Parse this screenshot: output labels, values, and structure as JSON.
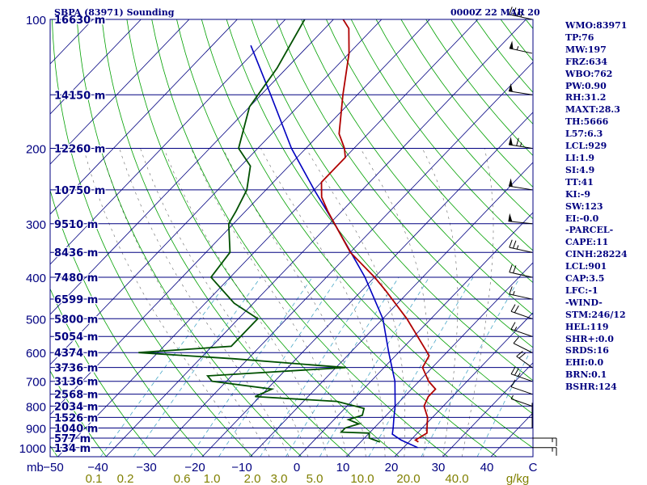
{
  "header": {
    "title": "SBPA (83971) Sounding",
    "time": "0000Z 22 MAR 20"
  },
  "indices": [
    "WMO:83971",
    "TP:76",
    "MW:197",
    "FRZ:634",
    "WBO:762",
    "PW:0.90",
    "RH:31.2",
    "MAXT:28.3",
    "TH:5666",
    "L57:6.3",
    "LCL:929",
    "LI:1.9",
    "SI:4.9",
    "TT:41",
    "KI:-9",
    "SW:123",
    "EI:-0.0",
    "-PARCEL-",
    "CAPE:11",
    "CINH:28224",
    "LCL:901",
    "CAP:3.5",
    "LFC:-1",
    "-WIND-",
    "STM:246/12",
    "HEL:119",
    "SHR+:0.0",
    "SRDS:16",
    "EHI:0.0",
    "BRN:0.1",
    "BSHR:124"
  ],
  "colors": {
    "frame": "#000080",
    "isobar": "#000080",
    "isotherm": "#000080",
    "dry_adiabat": "#00a000",
    "moist_adiabat": "#000000",
    "mixing_ratio": "#4aa8c8",
    "temperature": "#b00000",
    "dewpoint": "#005000",
    "parcel": "#0000c0",
    "mr_labels": "#808000",
    "wind": "#000000"
  },
  "chart_data": {
    "type": "skew-t",
    "x_unit": "°C",
    "x_ticks": [
      -50,
      -40,
      -30,
      -20,
      -10,
      0,
      10,
      20,
      30,
      40,
      "C"
    ],
    "y_unit": "mb",
    "y_ticks": [
      100,
      200,
      300,
      400,
      500,
      600,
      700,
      800,
      900,
      1000
    ],
    "height_labels": [
      {
        "p": 100,
        "label": "16630 m"
      },
      {
        "p": 150,
        "label": "14150 m"
      },
      {
        "p": 200,
        "label": "12260 m"
      },
      {
        "p": 250,
        "label": "10750 m"
      },
      {
        "p": 300,
        "label": "9510 m"
      },
      {
        "p": 350,
        "label": "8436 m"
      },
      {
        "p": 400,
        "label": "7480 m"
      },
      {
        "p": 450,
        "label": "6599 m"
      },
      {
        "p": 500,
        "label": "5800 m"
      },
      {
        "p": 550,
        "label": "5054 m"
      },
      {
        "p": 600,
        "label": "4374 m"
      },
      {
        "p": 650,
        "label": "3736 m"
      },
      {
        "p": 700,
        "label": "3136 m"
      },
      {
        "p": 750,
        "label": "2568 m"
      },
      {
        "p": 800,
        "label": "2034 m"
      },
      {
        "p": 850,
        "label": "1526 m"
      },
      {
        "p": 900,
        "label": "1040 m"
      },
      {
        "p": 950,
        "label": "577 m"
      },
      {
        "p": 1000,
        "label": "134 m"
      }
    ],
    "mixing_ratio_labels": [
      "0.1",
      "0.2",
      "0.6",
      "1.0",
      "2.0",
      "3.0",
      "5.0",
      "10.0",
      "20.0",
      "40.0",
      "g/kg"
    ],
    "mixing_ratio_values": [
      0.1,
      0.2,
      0.6,
      1.0,
      2.0,
      3.0,
      5.0,
      10.0,
      20.0,
      40.0
    ],
    "temperature": [
      {
        "p": 970,
        "t": 22
      },
      {
        "p": 960,
        "t": 21
      },
      {
        "p": 925,
        "t": 22
      },
      {
        "p": 900,
        "t": 21
      },
      {
        "p": 850,
        "t": 19
      },
      {
        "p": 800,
        "t": 16
      },
      {
        "p": 760,
        "t": 15
      },
      {
        "p": 730,
        "t": 15
      },
      {
        "p": 700,
        "t": 12
      },
      {
        "p": 650,
        "t": 8
      },
      {
        "p": 610,
        "t": 7
      },
      {
        "p": 590,
        "t": 5
      },
      {
        "p": 500,
        "t": -5
      },
      {
        "p": 430,
        "t": -15
      },
      {
        "p": 400,
        "t": -20
      },
      {
        "p": 350,
        "t": -30
      },
      {
        "p": 300,
        "t": -39
      },
      {
        "p": 280,
        "t": -43
      },
      {
        "p": 260,
        "t": -47
      },
      {
        "p": 240,
        "t": -50
      },
      {
        "p": 210,
        "t": -50
      },
      {
        "p": 200,
        "t": -52
      },
      {
        "p": 185,
        "t": -56
      },
      {
        "p": 150,
        "t": -63
      },
      {
        "p": 120,
        "t": -70
      },
      {
        "p": 105,
        "t": -75
      },
      {
        "p": 100,
        "t": -78
      }
    ],
    "dewpoint": [
      {
        "p": 970,
        "t": 14
      },
      {
        "p": 950,
        "t": 11
      },
      {
        "p": 925,
        "t": 10
      },
      {
        "p": 920,
        "t": 4
      },
      {
        "p": 900,
        "t": 4
      },
      {
        "p": 880,
        "t": 6
      },
      {
        "p": 860,
        "t": 3
      },
      {
        "p": 840,
        "t": 5
      },
      {
        "p": 810,
        "t": 4
      },
      {
        "p": 780,
        "t": -3
      },
      {
        "p": 760,
        "t": -21
      },
      {
        "p": 730,
        "t": -19
      },
      {
        "p": 700,
        "t": -33
      },
      {
        "p": 680,
        "t": -35
      },
      {
        "p": 650,
        "t": -8
      },
      {
        "p": 620,
        "t": -33
      },
      {
        "p": 600,
        "t": -54
      },
      {
        "p": 580,
        "t": -36
      },
      {
        "p": 500,
        "t": -36
      },
      {
        "p": 460,
        "t": -44
      },
      {
        "p": 400,
        "t": -54
      },
      {
        "p": 350,
        "t": -55
      },
      {
        "p": 300,
        "t": -61
      },
      {
        "p": 280,
        "t": -62
      },
      {
        "p": 250,
        "t": -64
      },
      {
        "p": 220,
        "t": -68
      },
      {
        "p": 200,
        "t": -74
      },
      {
        "p": 160,
        "t": -80
      },
      {
        "p": 130,
        "t": -82
      },
      {
        "p": 100,
        "t": -86
      }
    ],
    "parcel": [
      {
        "p": 1000,
        "t": 23
      },
      {
        "p": 960,
        "t": 18
      },
      {
        "p": 930,
        "t": 15
      },
      {
        "p": 901,
        "t": 14
      },
      {
        "p": 850,
        "t": 12
      },
      {
        "p": 800,
        "t": 10
      },
      {
        "p": 700,
        "t": 5
      },
      {
        "p": 600,
        "t": -2
      },
      {
        "p": 500,
        "t": -10
      },
      {
        "p": 400,
        "t": -22
      },
      {
        "p": 300,
        "t": -39
      },
      {
        "p": 250,
        "t": -50
      },
      {
        "p": 200,
        "t": -63
      },
      {
        "p": 150,
        "t": -78
      },
      {
        "p": 115,
        "t": -92
      }
    ],
    "wind_barbs": [
      {
        "p": 100,
        "dir": 290,
        "kt": 40
      },
      {
        "p": 120,
        "dir": 290,
        "kt": 55
      },
      {
        "p": 150,
        "dir": 285,
        "kt": 50
      },
      {
        "p": 200,
        "dir": 285,
        "kt": 65
      },
      {
        "p": 250,
        "dir": 285,
        "kt": 50
      },
      {
        "p": 300,
        "dir": 280,
        "kt": 50
      },
      {
        "p": 350,
        "dir": 290,
        "kt": 25
      },
      {
        "p": 400,
        "dir": 290,
        "kt": 20
      },
      {
        "p": 450,
        "dir": 290,
        "kt": 15
      },
      {
        "p": 500,
        "dir": 300,
        "kt": 20
      },
      {
        "p": 550,
        "dir": 300,
        "kt": 15
      },
      {
        "p": 600,
        "dir": 310,
        "kt": 10
      },
      {
        "p": 650,
        "dir": 320,
        "kt": 20
      },
      {
        "p": 700,
        "dir": 300,
        "kt": 25
      },
      {
        "p": 750,
        "dir": 300,
        "kt": 10
      },
      {
        "p": 800,
        "dir": 300,
        "kt": 5
      },
      {
        "p": 850,
        "dir": 0,
        "kt": 0
      },
      {
        "p": 900,
        "dir": 0,
        "kt": 0
      },
      {
        "p": 950,
        "dir": 90,
        "kt": 15
      },
      {
        "p": 1000,
        "dir": 90,
        "kt": 15
      }
    ],
    "title": "SBPA (83971) Sounding"
  }
}
